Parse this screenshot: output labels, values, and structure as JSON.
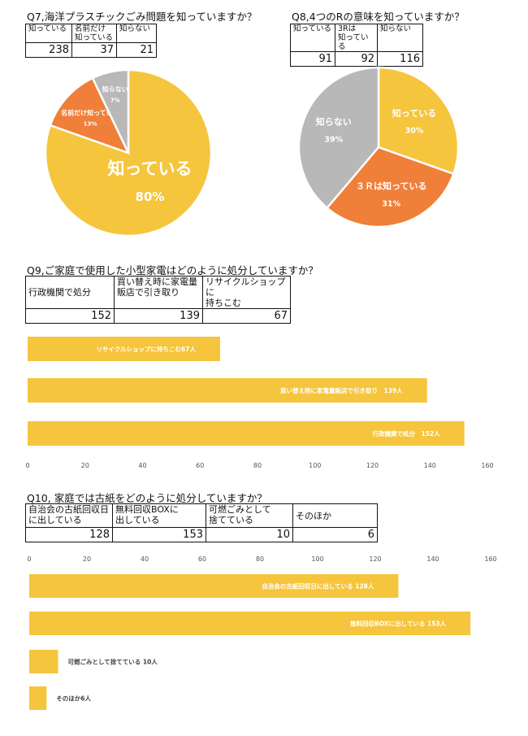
{
  "q7": {
    "title": "Q7,海洋プラスチックごみ問題を知っていますか？",
    "headers": [
      "知っている",
      "名前だけ\n知っている",
      "知らない"
    ],
    "values": [
      "238",
      "37",
      "21"
    ]
  },
  "q8": {
    "title": "Q8,4つのRの意味を知っていますか？",
    "headers": [
      "知っている",
      "3Rは\n知っている",
      "知らない"
    ],
    "values": [
      "91",
      "92",
      "116"
    ]
  },
  "q9": {
    "title": "Q9,ご家庭で使用した小型家電はどのように処分していますか？",
    "headers": [
      "行政機関で処分",
      "買い替え時に家電量\n販店で引き取り",
      "リサイクルショップに\n持ちこむ"
    ],
    "values": [
      "152",
      "139",
      "67"
    ]
  },
  "q10": {
    "title": "Q10, 家庭では古紙をどのように処分していますか？",
    "headers": [
      "自治会の古紙回収日\nに出している",
      "無料回収BOXに\n出している",
      "可燃ごみとして\n捨てている",
      "そのほか"
    ],
    "values": [
      "128",
      "153",
      "10",
      "6"
    ]
  },
  "colors": {
    "yellow": "#f5c53d",
    "orange": "#f07f3a",
    "gray": "#b8b8b8"
  },
  "chart_data": [
    {
      "type": "pie",
      "categories": [
        "知っている",
        "名前だけ知っている",
        "知らない"
      ],
      "values": [
        238,
        37,
        21
      ],
      "labels": [
        "知っている",
        "名前だけ知っている",
        "知らない"
      ],
      "percent_labels": [
        "80%",
        "13%",
        "7%"
      ],
      "colors": [
        "#f5c53d",
        "#f07f3a",
        "#b8b8b8"
      ]
    },
    {
      "type": "pie",
      "categories": [
        "知っている",
        "3Rは知っている",
        "知らない"
      ],
      "values": [
        91,
        92,
        116
      ],
      "labels": [
        "知っている",
        "３Ｒは知っている",
        "知らない"
      ],
      "percent_labels": [
        "30%",
        "31%",
        "39%"
      ],
      "colors": [
        "#f5c53d",
        "#f07f3a",
        "#b8b8b8"
      ]
    },
    {
      "type": "bar",
      "orientation": "horizontal",
      "categories": [
        "リサイクルショップに持ちこむ",
        "買い替え時に家電量販店で引き取り",
        "行政機関で処分"
      ],
      "values": [
        67,
        139,
        152
      ],
      "bar_labels": [
        "リサイクルショップに持ちこむ67人",
        "買い替え時に家電量販店で引き取り　139人",
        "行政機関で処分　152人"
      ],
      "xlim": [
        0,
        160
      ],
      "xticks": [
        "0",
        "20",
        "40",
        "60",
        "80",
        "100",
        "120",
        "140",
        "160"
      ],
      "tick_position": "bottom",
      "grid": false
    },
    {
      "type": "bar",
      "orientation": "horizontal",
      "categories": [
        "自治会の古紙回収日に出している",
        "無料回収BOXに出している",
        "可燃ごみとして捨てている",
        "そのほか"
      ],
      "values": [
        128,
        153,
        10,
        6
      ],
      "bar_labels": [
        "自治会の古紙回収日に出している 128人",
        "無料回収BOXに出している 153人",
        "可燃ごみとして捨てている 10人",
        "そのほか6人"
      ],
      "xlim": [
        0,
        160
      ],
      "xticks": [
        "0",
        "20",
        "40",
        "60",
        "80",
        "100",
        "120",
        "140",
        "160"
      ],
      "tick_position": "top",
      "grid": false
    }
  ]
}
